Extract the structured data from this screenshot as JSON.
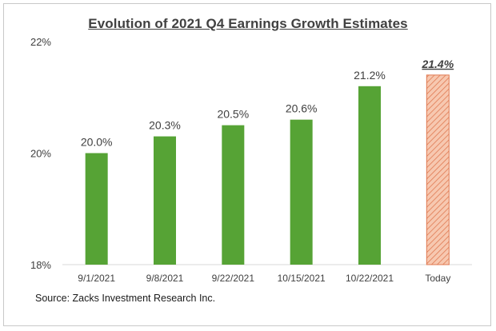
{
  "chart_data": {
    "type": "bar",
    "title": "Evolution of 2021 Q4 Earnings Growth Estimates",
    "categories": [
      "9/1/2021",
      "9/8/2021",
      "9/22/2021",
      "10/15/2021",
      "10/22/2021",
      "Today"
    ],
    "values": [
      20.0,
      20.3,
      20.5,
      20.6,
      21.2,
      21.4
    ],
    "data_labels": [
      "20.0%",
      "20.3%",
      "20.5%",
      "20.6%",
      "21.2%",
      "21.4%"
    ],
    "y_ticks": [
      18,
      20,
      22
    ],
    "y_tick_labels": [
      "18%",
      "20%",
      "22%"
    ],
    "ylim": [
      18,
      22
    ],
    "xlabel": "",
    "ylabel": "",
    "grid": false,
    "legend": "none",
    "colors": {
      "bar": "#56a335",
      "highlight_fill": "#f4b89a",
      "highlight_stroke": "#e07a52",
      "text": "#404040"
    },
    "highlight_index": 5
  },
  "source": "Source: Zacks Investment Research Inc."
}
